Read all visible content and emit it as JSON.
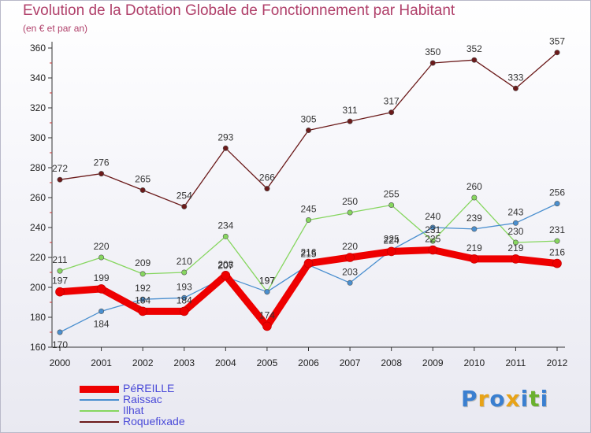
{
  "header": {
    "title": "Evolution de la Dotation Globale de Fonctionnement par Habitant",
    "subtitle": "(en € et par an)"
  },
  "logo": {
    "text": "Proxiti",
    "colors": [
      "#3a7fd0",
      "#e8a317",
      "#3a7fd0",
      "#e8a317",
      "#3a7fd0",
      "#6ab02e",
      "#3a7fd0"
    ]
  },
  "chart_data": {
    "type": "line",
    "title": "Evolution de la Dotation Globale de Fonctionnement par Habitant",
    "subtitle": "(en € et par an)",
    "xlabel": "",
    "ylabel": "",
    "x": [
      "2000",
      "2001",
      "2002",
      "2003",
      "2004",
      "2005",
      "2006",
      "2007",
      "2008",
      "2009",
      "2010",
      "2011",
      "2012"
    ],
    "ylim": [
      160,
      360
    ],
    "yticks": [
      160,
      180,
      200,
      220,
      240,
      260,
      280,
      300,
      320,
      340,
      360
    ],
    "grid": false,
    "legend_position": "bottom-left",
    "series": [
      {
        "name": "PéREILLE",
        "values": [
          197,
          199,
          184,
          184,
          208,
          174,
          216,
          220,
          224,
          225,
          219,
          219,
          216
        ],
        "color": "#ee0000",
        "width": 9
      },
      {
        "name": "Raissac",
        "values": [
          170,
          184,
          192,
          193,
          207,
          197,
          215,
          203,
          225,
          240,
          239,
          243,
          256
        ],
        "color": "#4a8fcf",
        "width": 1.3
      },
      {
        "name": "Ilhat",
        "values": [
          211,
          220,
          209,
          210,
          234,
          197,
          245,
          250,
          255,
          231,
          260,
          230,
          231
        ],
        "color": "#86d65f",
        "width": 1.3
      },
      {
        "name": "Roquefixade",
        "values": [
          272,
          276,
          265,
          254,
          293,
          266,
          305,
          311,
          317,
          350,
          352,
          333,
          357
        ],
        "color": "#6b1a1a",
        "width": 1.3
      }
    ]
  }
}
